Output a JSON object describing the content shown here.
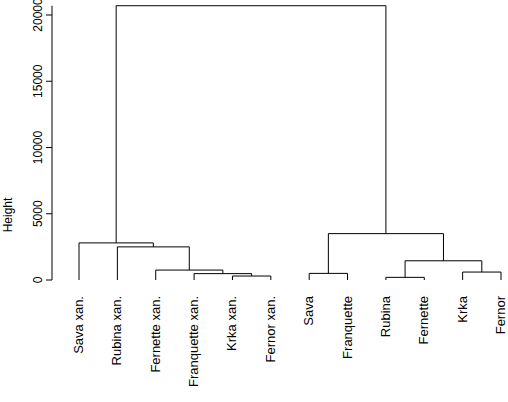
{
  "chart_data": {
    "type": "dendrogram",
    "y_label": "Height",
    "labels": [
      "Sava xan.",
      "Rubina xan.",
      "Fernette xan.",
      "Franquette xan.",
      "Krka xan.",
      "Fernor xan.",
      "Sava",
      "Franquette",
      "Rubina",
      "Fernette",
      "Krka",
      "Fernor"
    ],
    "merge": [
      [
        -9,
        -10
      ],
      [
        -5,
        -6
      ],
      [
        -4,
        2
      ],
      [
        -7,
        -8
      ],
      [
        -11,
        -12
      ],
      [
        -3,
        3
      ],
      [
        1,
        5
      ],
      [
        -2,
        6
      ],
      [
        -1,
        8
      ],
      [
        4,
        7
      ],
      [
        9,
        10
      ]
    ],
    "height": [
      200,
      300,
      480,
      500,
      600,
      750,
      1450,
      2500,
      2800,
      3500,
      20700
    ],
    "ylim": [
      0,
      20700
    ],
    "yticks": [
      0,
      5000,
      10000,
      15000,
      20000
    ],
    "color": "#000000"
  }
}
